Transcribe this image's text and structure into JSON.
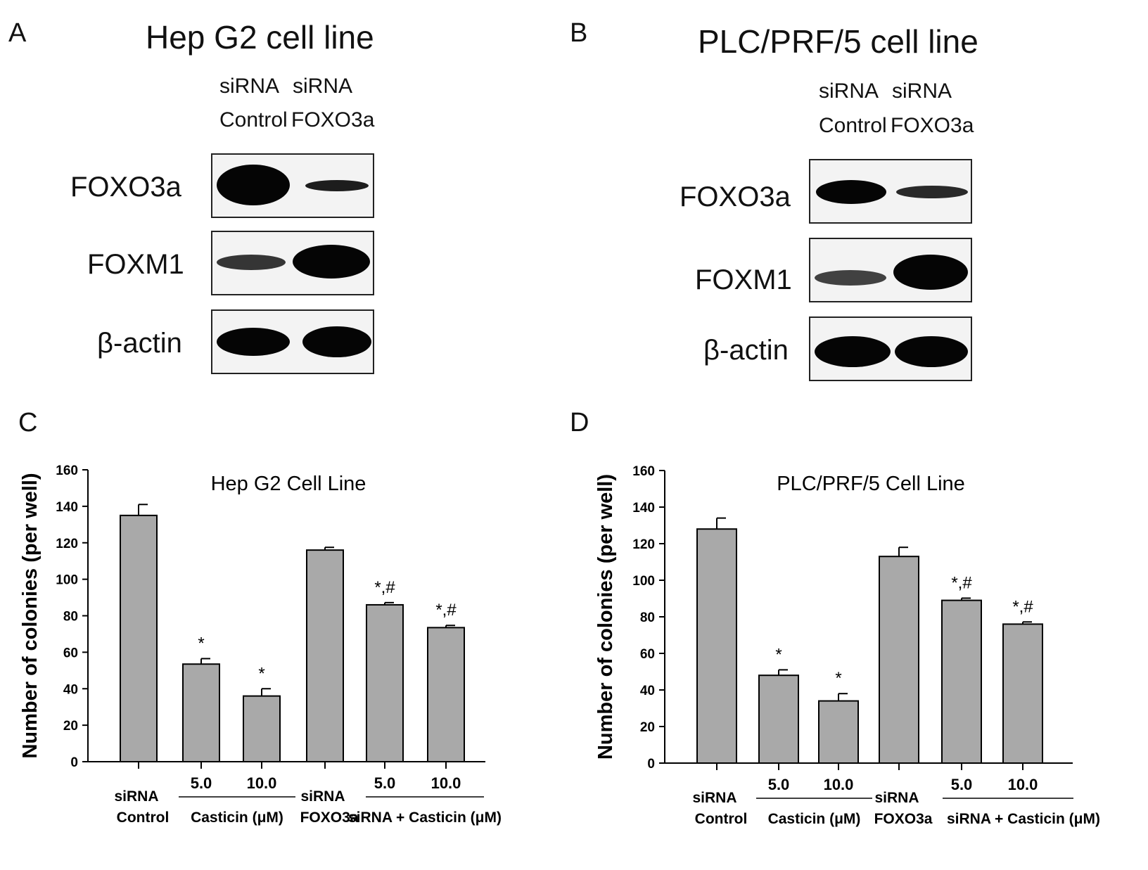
{
  "panels": {
    "a": {
      "letter": "A",
      "title": "Hep G2 cell line",
      "lanes": [
        {
          "line1": "siRNA",
          "line2": "Control"
        },
        {
          "line1": "siRNA",
          "line2": "FOXO3a"
        }
      ],
      "blots": [
        {
          "label": "FOXO3a",
          "band_intensity": [
            1.0,
            0.35
          ]
        },
        {
          "label": "FOXM1",
          "band_intensity": [
            0.55,
            1.0
          ]
        },
        {
          "label": "β-actin",
          "band_intensity": [
            1.0,
            1.0
          ]
        }
      ]
    },
    "b": {
      "letter": "B",
      "title": "PLC/PRF/5 cell line",
      "lanes": [
        {
          "line1": "siRNA",
          "line2": "Control"
        },
        {
          "line1": "siRNA",
          "line2": "FOXO3a"
        }
      ],
      "blots": [
        {
          "label": "FOXO3a",
          "band_intensity": [
            0.9,
            0.45
          ]
        },
        {
          "label": "FOXM1",
          "band_intensity": [
            0.5,
            1.0
          ]
        },
        {
          "label": "β-actin",
          "band_intensity": [
            1.0,
            1.0
          ]
        }
      ]
    },
    "c": {
      "letter": "C"
    },
    "d": {
      "letter": "D"
    }
  },
  "chart_data": [
    {
      "type": "bar",
      "title": "Hep G2 Cell Line",
      "ylabel": "Number of colonies (per well)",
      "ylim": [
        0,
        160
      ],
      "yticks": [
        "0",
        "20",
        "40",
        "60",
        "80",
        "100",
        "120",
        "140",
        "160"
      ],
      "categories": [
        "siRNA Control",
        "5.0",
        "10.0",
        "siRNA FOXO3a",
        "5.0",
        "10.0"
      ],
      "values": [
        135,
        53.5,
        36,
        116,
        86,
        73.5
      ],
      "errors": [
        6,
        3,
        4,
        1.5,
        1.2,
        1.2
      ],
      "annotations": [
        "",
        "*",
        "*",
        "",
        "*,#",
        "*,#"
      ],
      "group_labels": [
        "Casticin (μM)",
        "siRNA + Casticin (μM)"
      ],
      "color": "#a9a9a9",
      "grid": false
    },
    {
      "type": "bar",
      "title": "PLC/PRF/5 Cell Line",
      "ylabel": "Number of colonies (per well)",
      "ylim": [
        0,
        160
      ],
      "yticks": [
        "0",
        "20",
        "40",
        "60",
        "80",
        "100",
        "120",
        "140",
        "160"
      ],
      "categories": [
        "siRNA Control",
        "5.0",
        "10.0",
        "siRNA FOXO3a",
        "5.0",
        "10.0"
      ],
      "values": [
        128,
        48,
        34,
        113,
        89,
        76
      ],
      "errors": [
        6,
        3,
        4,
        5,
        1.2,
        1.2
      ],
      "annotations": [
        "",
        "*",
        "*",
        "",
        "*,#",
        "*,#"
      ],
      "group_labels": [
        "Casticin (μM)",
        "siRNA + Casticin (μM)"
      ],
      "color": "#a9a9a9",
      "grid": false
    }
  ]
}
